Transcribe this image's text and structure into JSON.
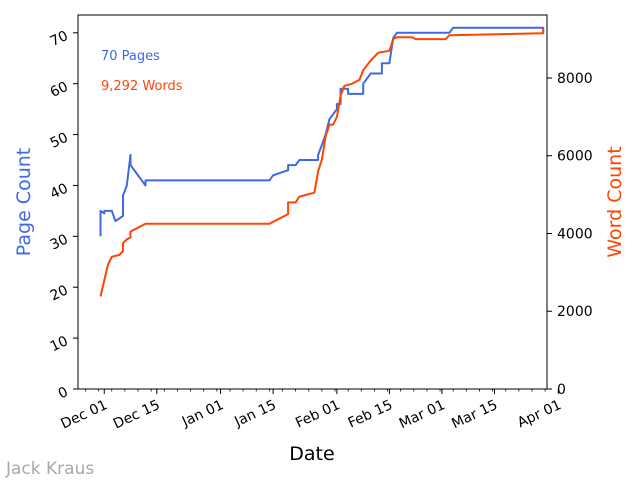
{
  "credit": "Jack Kraus",
  "chart_data": {
    "type": "line",
    "xlabel": "Date",
    "ylabel_left": "Page Count",
    "ylabel_right": "Word Count",
    "x_ticks": [
      "Dec 01",
      "Dec 15",
      "Jan 01",
      "Jan 15",
      "Feb 01",
      "Feb 15",
      "Mar 01",
      "Mar 15",
      "Apr 01"
    ],
    "y_left_ticks": [
      0,
      10,
      20,
      30,
      40,
      50,
      60,
      70
    ],
    "y_right_ticks": [
      0,
      2000,
      4000,
      6000,
      8000
    ],
    "ylim_left": [
      0,
      73.5
    ],
    "ylim_right": [
      0,
      9620
    ],
    "xlim": [
      "2020-11-24",
      "2021-03-29"
    ],
    "annotations": [
      {
        "text": "70 Pages",
        "color": "#4169E1"
      },
      {
        "text": "9,292 Words",
        "color": "#FF4500"
      }
    ],
    "grid": false,
    "series": [
      {
        "name": "Page Count",
        "axis": "left",
        "color": "#4169E1",
        "points": [
          [
            "2020-11-30",
            30
          ],
          [
            "2020-11-30",
            35
          ],
          [
            "2020-12-01",
            34.5
          ],
          [
            "2020-12-01",
            35
          ],
          [
            "2020-12-03",
            35
          ],
          [
            "2020-12-04",
            33
          ],
          [
            "2020-12-06",
            34
          ],
          [
            "2020-12-06",
            38
          ],
          [
            "2020-12-07",
            40
          ],
          [
            "2020-12-08",
            46
          ],
          [
            "2020-12-08",
            44
          ],
          [
            "2020-12-12",
            40
          ],
          [
            "2020-12-12",
            41
          ],
          [
            "2021-01-14",
            41
          ],
          [
            "2021-01-15",
            42
          ],
          [
            "2021-01-19",
            43
          ],
          [
            "2021-01-19",
            44
          ],
          [
            "2021-01-21",
            44
          ],
          [
            "2021-01-22",
            45
          ],
          [
            "2021-01-27",
            45
          ],
          [
            "2021-01-27",
            46
          ],
          [
            "2021-01-28",
            48
          ],
          [
            "2021-01-29",
            50
          ],
          [
            "2021-01-30",
            53
          ],
          [
            "2021-01-31",
            54
          ],
          [
            "2021-02-01",
            55
          ],
          [
            "2021-02-01",
            56
          ],
          [
            "2021-02-02",
            56
          ],
          [
            "2021-02-02",
            59
          ],
          [
            "2021-02-04",
            59
          ],
          [
            "2021-02-04",
            58
          ],
          [
            "2021-02-08",
            58
          ],
          [
            "2021-02-08",
            60
          ],
          [
            "2021-02-10",
            62
          ],
          [
            "2021-02-13",
            62
          ],
          [
            "2021-02-13",
            64
          ],
          [
            "2021-02-15",
            64
          ],
          [
            "2021-02-16",
            69
          ],
          [
            "2021-02-17",
            70
          ],
          [
            "2021-03-03",
            70
          ],
          [
            "2021-03-04",
            71
          ],
          [
            "2021-03-28",
            71
          ],
          [
            "2021-03-28",
            70
          ]
        ]
      },
      {
        "name": "Word Count",
        "axis": "right",
        "color": "#FF4500",
        "points": [
          [
            "2020-11-30",
            2380
          ],
          [
            "2020-12-01",
            2800
          ],
          [
            "2020-12-02",
            3200
          ],
          [
            "2020-12-03",
            3400
          ],
          [
            "2020-12-05",
            3450
          ],
          [
            "2020-12-06",
            3550
          ],
          [
            "2020-12-06",
            3750
          ],
          [
            "2020-12-07",
            3850
          ],
          [
            "2020-12-08",
            3900
          ],
          [
            "2020-12-08",
            4050
          ],
          [
            "2020-12-10",
            4150
          ],
          [
            "2020-12-12",
            4250
          ],
          [
            "2021-01-14",
            4250
          ],
          [
            "2021-01-15",
            4300
          ],
          [
            "2021-01-19",
            4500
          ],
          [
            "2021-01-19",
            4800
          ],
          [
            "2021-01-21",
            4800
          ],
          [
            "2021-01-22",
            4950
          ],
          [
            "2021-01-26",
            5050
          ],
          [
            "2021-01-27",
            5600
          ],
          [
            "2021-01-28",
            5900
          ],
          [
            "2021-01-29",
            6500
          ],
          [
            "2021-01-30",
            6800
          ],
          [
            "2021-01-31",
            6800
          ],
          [
            "2021-02-01",
            7000
          ],
          [
            "2021-02-02",
            7550
          ],
          [
            "2021-02-03",
            7800
          ],
          [
            "2021-02-05",
            7850
          ],
          [
            "2021-02-07",
            7950
          ],
          [
            "2021-02-08",
            8200
          ],
          [
            "2021-02-10",
            8450
          ],
          [
            "2021-02-12",
            8650
          ],
          [
            "2021-02-15",
            8700
          ],
          [
            "2021-02-16",
            9000
          ],
          [
            "2021-02-17",
            9050
          ],
          [
            "2021-02-21",
            9050
          ],
          [
            "2021-02-22",
            9000
          ],
          [
            "2021-03-02",
            9000
          ],
          [
            "2021-03-03",
            9100
          ],
          [
            "2021-03-28",
            9150
          ],
          [
            "2021-03-28",
            9292
          ]
        ]
      }
    ]
  }
}
